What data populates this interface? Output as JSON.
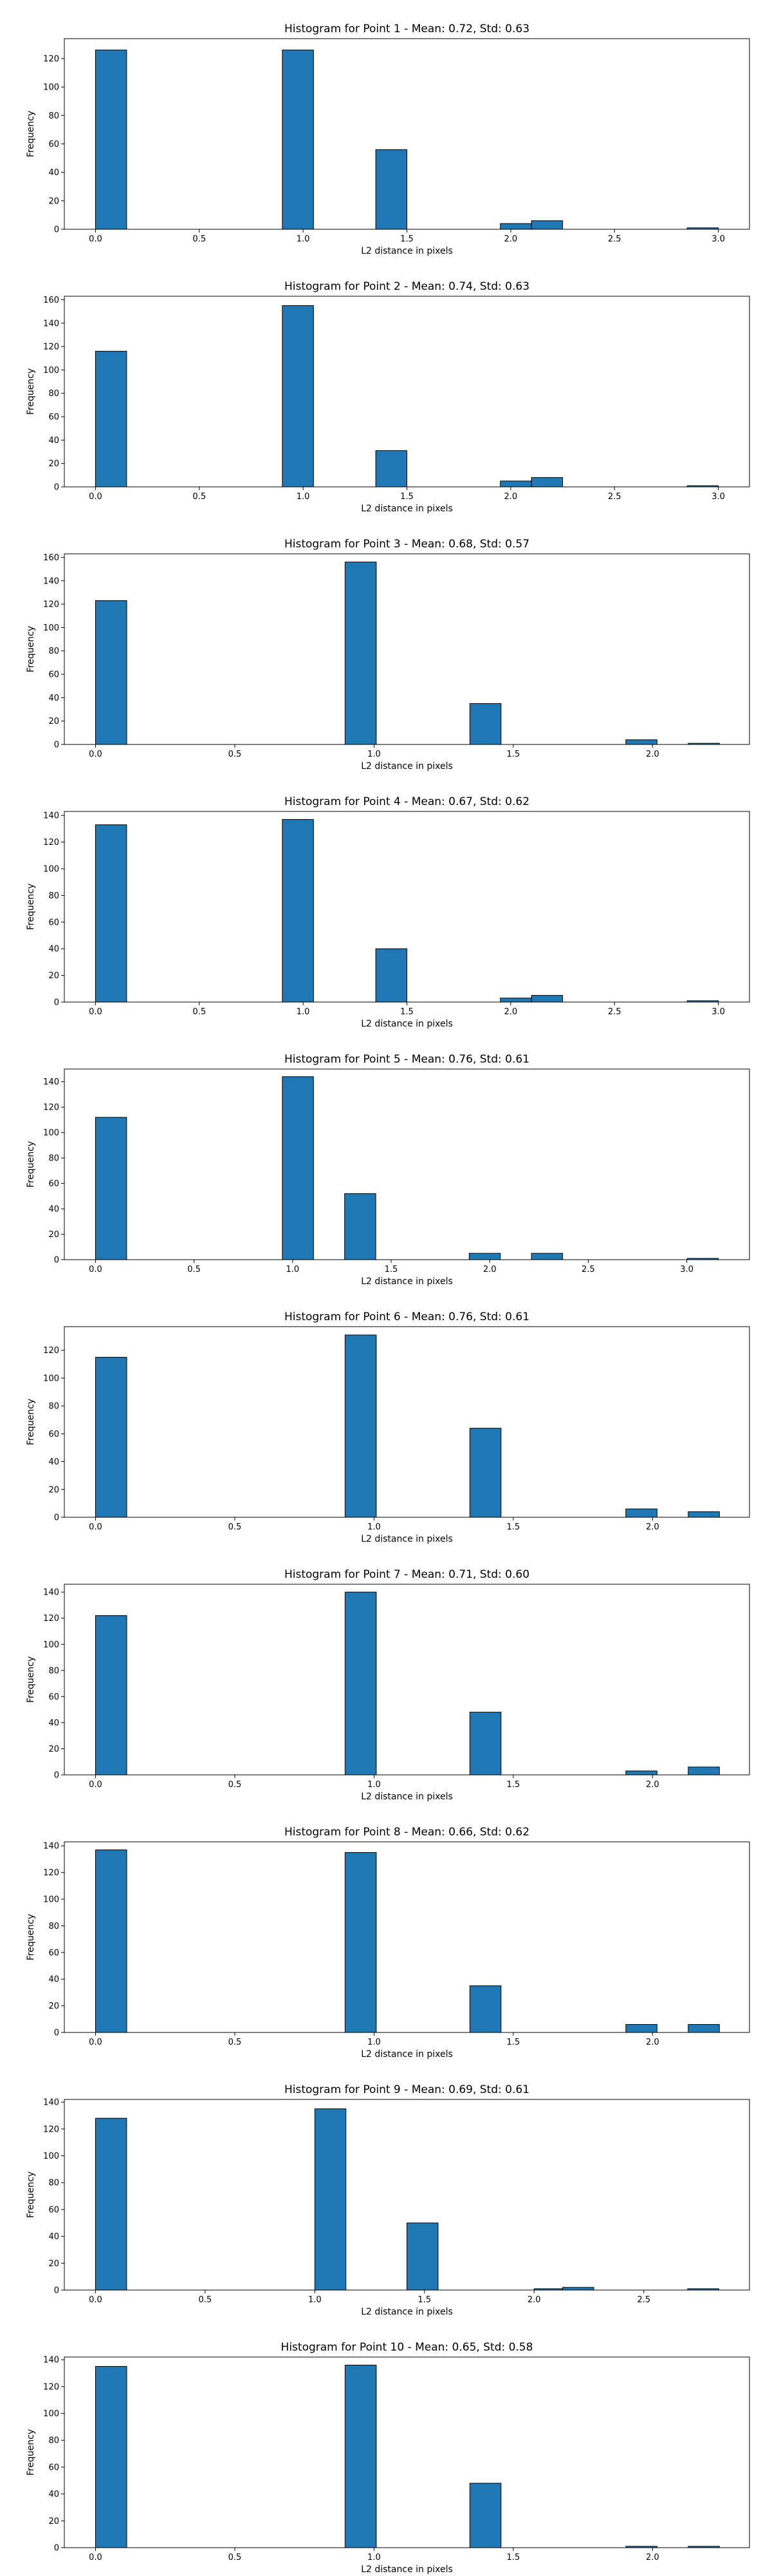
{
  "chart_data": [
    {
      "type": "bar",
      "title": "Histogram for Point 1 - Mean: 0.72, Std: 0.63",
      "xlabel": "L2 distance in pixels",
      "ylabel": "Frequency",
      "xlim": [
        -0.15,
        3.15
      ],
      "ylim": [
        0,
        134
      ],
      "xticks": [
        0.0,
        0.5,
        1.0,
        1.5,
        2.0,
        2.5,
        3.0
      ],
      "xtick_labels": [
        "0.0",
        "0.5",
        "1.0",
        "1.5",
        "2.0",
        "2.5",
        "3.0"
      ],
      "yticks": [
        0,
        20,
        40,
        60,
        80,
        100,
        120
      ],
      "bin_width": 0.15,
      "bins": [
        [
          0.0,
          126
        ],
        [
          0.9,
          126
        ],
        [
          1.35,
          56
        ],
        [
          1.95,
          4
        ],
        [
          2.1,
          6
        ],
        [
          2.85,
          1
        ]
      ]
    },
    {
      "type": "bar",
      "title": "Histogram for Point 2 - Mean: 0.74, Std: 0.63",
      "xlabel": "L2 distance in pixels",
      "ylabel": "Frequency",
      "xlim": [
        -0.15,
        3.15
      ],
      "ylim": [
        0,
        163
      ],
      "xticks": [
        0.0,
        0.5,
        1.0,
        1.5,
        2.0,
        2.5,
        3.0
      ],
      "xtick_labels": [
        "0.0",
        "0.5",
        "1.0",
        "1.5",
        "2.0",
        "2.5",
        "3.0"
      ],
      "yticks": [
        0,
        20,
        40,
        60,
        80,
        100,
        120,
        140,
        160
      ],
      "bin_width": 0.15,
      "bins": [
        [
          0.0,
          116
        ],
        [
          0.9,
          155
        ],
        [
          1.35,
          31
        ],
        [
          1.95,
          5
        ],
        [
          2.1,
          8
        ],
        [
          2.85,
          1
        ]
      ]
    },
    {
      "type": "bar",
      "title": "Histogram for Point 3 - Mean: 0.68, Std: 0.57",
      "xlabel": "L2 distance in pixels",
      "ylabel": "Frequency",
      "xlim": [
        -0.112,
        2.348
      ],
      "ylim": [
        0,
        163
      ],
      "xticks": [
        0.0,
        0.5,
        1.0,
        1.5,
        2.0
      ],
      "xtick_labels": [
        "0.0",
        "0.5",
        "1.0",
        "1.5",
        "2.0"
      ],
      "yticks": [
        0,
        20,
        40,
        60,
        80,
        100,
        120,
        140,
        160
      ],
      "bin_width": 0.112,
      "bins": [
        [
          0.0,
          123
        ],
        [
          0.896,
          156
        ],
        [
          1.344,
          35
        ],
        [
          1.904,
          4
        ],
        [
          2.128,
          1
        ]
      ]
    },
    {
      "type": "bar",
      "title": "Histogram for Point 4 - Mean: 0.67, Std: 0.62",
      "xlabel": "L2 distance in pixels",
      "ylabel": "Frequency",
      "xlim": [
        -0.15,
        3.15
      ],
      "ylim": [
        0,
        143
      ],
      "xticks": [
        0.0,
        0.5,
        1.0,
        1.5,
        2.0,
        2.5,
        3.0
      ],
      "xtick_labels": [
        "0.0",
        "0.5",
        "1.0",
        "1.5",
        "2.0",
        "2.5",
        "3.0"
      ],
      "yticks": [
        0,
        20,
        40,
        60,
        80,
        100,
        120,
        140
      ],
      "bin_width": 0.15,
      "bins": [
        [
          0.0,
          133
        ],
        [
          0.9,
          137
        ],
        [
          1.35,
          40
        ],
        [
          1.95,
          3
        ],
        [
          2.1,
          5
        ],
        [
          2.85,
          1
        ]
      ]
    },
    {
      "type": "bar",
      "title": "Histogram for Point 5 - Mean: 0.76, Std: 0.61",
      "xlabel": "L2 distance in pixels",
      "ylabel": "Frequency",
      "xlim": [
        -0.158,
        3.318
      ],
      "ylim": [
        0,
        150
      ],
      "xticks": [
        0.0,
        0.5,
        1.0,
        1.5,
        2.0,
        2.5,
        3.0
      ],
      "xtick_labels": [
        "0.0",
        "0.5",
        "1.0",
        "1.5",
        "2.0",
        "2.5",
        "3.0"
      ],
      "yticks": [
        0,
        20,
        40,
        60,
        80,
        100,
        120,
        140
      ],
      "bin_width": 0.158,
      "bins": [
        [
          0.0,
          112
        ],
        [
          0.948,
          144
        ],
        [
          1.264,
          52
        ],
        [
          1.896,
          5
        ],
        [
          2.212,
          5
        ],
        [
          3.002,
          1
        ]
      ]
    },
    {
      "type": "bar",
      "title": "Histogram for Point 6 - Mean: 0.76, Std: 0.61",
      "xlabel": "L2 distance in pixels",
      "ylabel": "Frequency",
      "xlim": [
        -0.112,
        2.348
      ],
      "ylim": [
        0,
        137
      ],
      "xticks": [
        0.0,
        0.5,
        1.0,
        1.5,
        2.0
      ],
      "xtick_labels": [
        "0.0",
        "0.5",
        "1.0",
        "1.5",
        "2.0"
      ],
      "yticks": [
        0,
        20,
        40,
        60,
        80,
        100,
        120
      ],
      "bin_width": 0.112,
      "bins": [
        [
          0.0,
          115
        ],
        [
          0.896,
          131
        ],
        [
          1.344,
          64
        ],
        [
          1.904,
          6
        ],
        [
          2.128,
          4
        ]
      ]
    },
    {
      "type": "bar",
      "title": "Histogram for Point 7 - Mean: 0.71, Std: 0.60",
      "xlabel": "L2 distance in pixels",
      "ylabel": "Frequency",
      "xlim": [
        -0.112,
        2.348
      ],
      "ylim": [
        0,
        146
      ],
      "xticks": [
        0.0,
        0.5,
        1.0,
        1.5,
        2.0
      ],
      "xtick_labels": [
        "0.0",
        "0.5",
        "1.0",
        "1.5",
        "2.0"
      ],
      "yticks": [
        0,
        20,
        40,
        60,
        80,
        100,
        120,
        140
      ],
      "bin_width": 0.112,
      "bins": [
        [
          0.0,
          122
        ],
        [
          0.896,
          140
        ],
        [
          1.344,
          48
        ],
        [
          1.904,
          3
        ],
        [
          2.128,
          6
        ]
      ]
    },
    {
      "type": "bar",
      "title": "Histogram for Point 8 - Mean: 0.66, Std: 0.62",
      "xlabel": "L2 distance in pixels",
      "ylabel": "Frequency",
      "xlim": [
        -0.112,
        2.348
      ],
      "ylim": [
        0,
        143
      ],
      "xticks": [
        0.0,
        0.5,
        1.0,
        1.5,
        2.0
      ],
      "xtick_labels": [
        "0.0",
        "0.5",
        "1.0",
        "1.5",
        "2.0"
      ],
      "yticks": [
        0,
        20,
        40,
        60,
        80,
        100,
        120,
        140
      ],
      "bin_width": 0.112,
      "bins": [
        [
          0.0,
          137
        ],
        [
          0.896,
          135
        ],
        [
          1.344,
          35
        ],
        [
          1.904,
          6
        ],
        [
          2.128,
          6
        ]
      ]
    },
    {
      "type": "bar",
      "title": "Histogram for Point 9 - Mean: 0.69, Std: 0.61",
      "xlabel": "L2 distance in pixels",
      "ylabel": "Frequency",
      "xlim": [
        -0.142,
        2.982
      ],
      "ylim": [
        0,
        142
      ],
      "xticks": [
        0.0,
        0.5,
        1.0,
        1.5,
        2.0,
        2.5
      ],
      "xtick_labels": [
        "0.0",
        "0.5",
        "1.0",
        "1.5",
        "2.0",
        "2.5"
      ],
      "yticks": [
        0,
        20,
        40,
        60,
        80,
        100,
        120,
        140
      ],
      "bin_width": 0.142,
      "bins": [
        [
          0.0,
          128
        ],
        [
          1.0,
          135
        ],
        [
          1.42,
          50
        ],
        [
          2.0,
          1
        ],
        [
          2.13,
          2
        ],
        [
          2.7,
          1
        ]
      ]
    },
    {
      "type": "bar",
      "title": "Histogram for Point 10 - Mean: 0.65, Std: 0.58",
      "xlabel": "L2 distance in pixels",
      "ylabel": "Frequency",
      "xlim": [
        -0.112,
        2.348
      ],
      "ylim": [
        0,
        142
      ],
      "xticks": [
        0.0,
        0.5,
        1.0,
        1.5,
        2.0
      ],
      "xtick_labels": [
        "0.0",
        "0.5",
        "1.0",
        "1.5",
        "2.0"
      ],
      "yticks": [
        0,
        20,
        40,
        60,
        80,
        100,
        120,
        140
      ],
      "bin_width": 0.112,
      "bins": [
        [
          0.0,
          135
        ],
        [
          0.896,
          136
        ],
        [
          1.344,
          48
        ],
        [
          1.904,
          1
        ],
        [
          2.128,
          1
        ]
      ]
    }
  ],
  "colors": {
    "bar_fill": "#1f77b4",
    "bar_edge": "#000000",
    "axes": "#000000",
    "background": "#ffffff"
  }
}
